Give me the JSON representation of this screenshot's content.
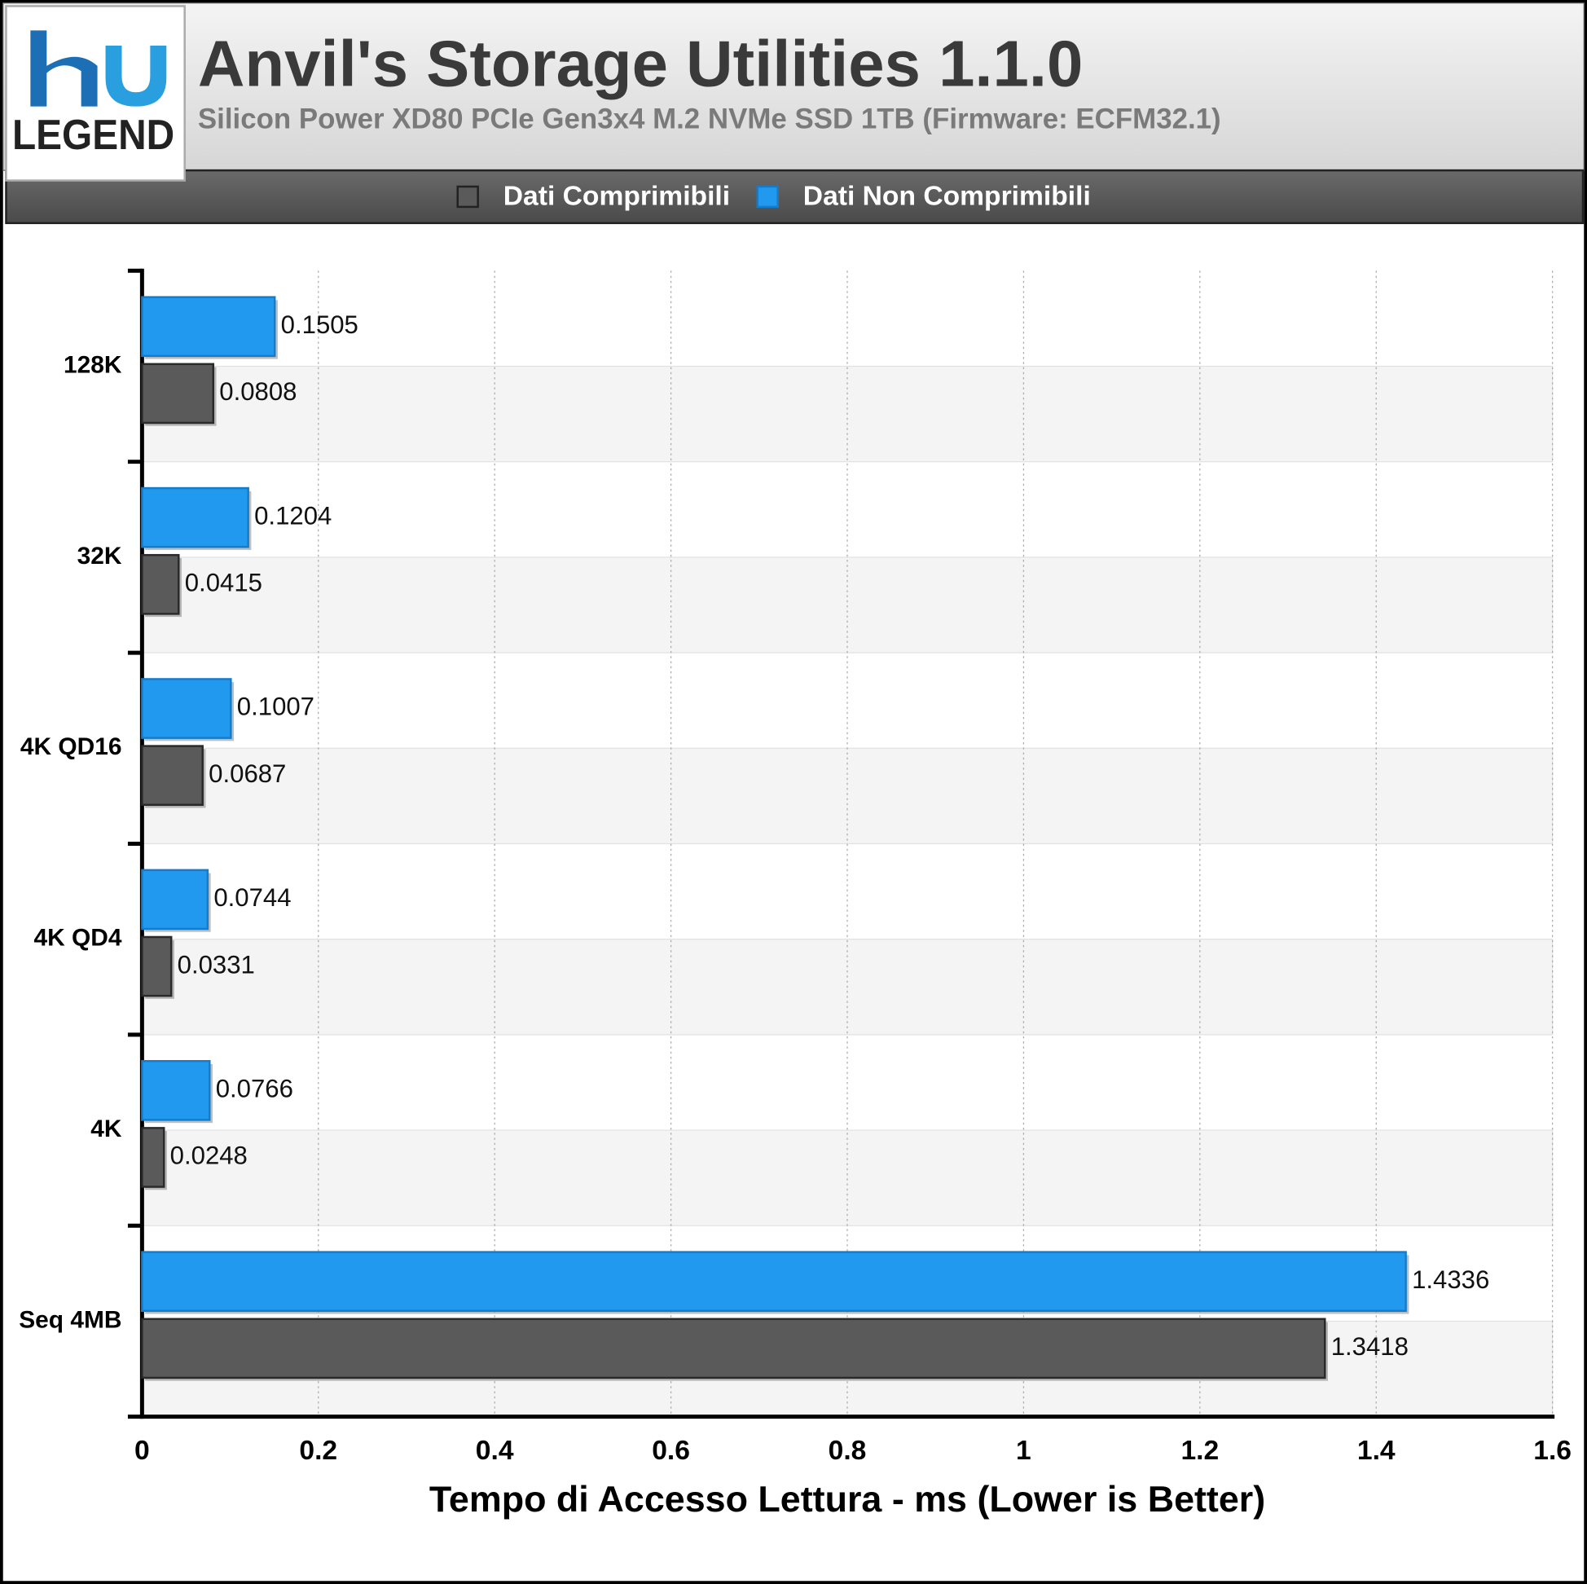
{
  "chart_data": {
    "type": "bar",
    "orientation": "horizontal",
    "title": "Anvil's Storage Utilities 1.1.0",
    "subtitle": "Silicon Power XD80 PCIe Gen3x4 M.2 NVMe SSD 1TB (Firmware: ECFM32.1)",
    "logo": "LEGEND",
    "x_label": "Tempo di Accesso Lettura - ms (Lower is Better)",
    "categories": [
      "128K",
      "32K",
      "4K QD16",
      "4K QD4",
      "4K",
      "Seq 4MB"
    ],
    "series": [
      {
        "name": "Dati Comprimibili",
        "color": "#5a5a5a",
        "values": [
          0.0808,
          0.0415,
          0.0687,
          0.0331,
          0.0248,
          1.3418
        ]
      },
      {
        "name": "Dati Non Comprimibili",
        "color": "#2199ee",
        "values": [
          0.1505,
          0.1204,
          0.1007,
          0.0744,
          0.0766,
          1.4336
        ]
      }
    ],
    "xlim": [
      0,
      1.6
    ],
    "xticks": [
      0,
      0.2,
      0.4,
      0.6,
      0.8,
      1,
      1.2,
      1.4,
      1.6
    ],
    "grid": true
  }
}
